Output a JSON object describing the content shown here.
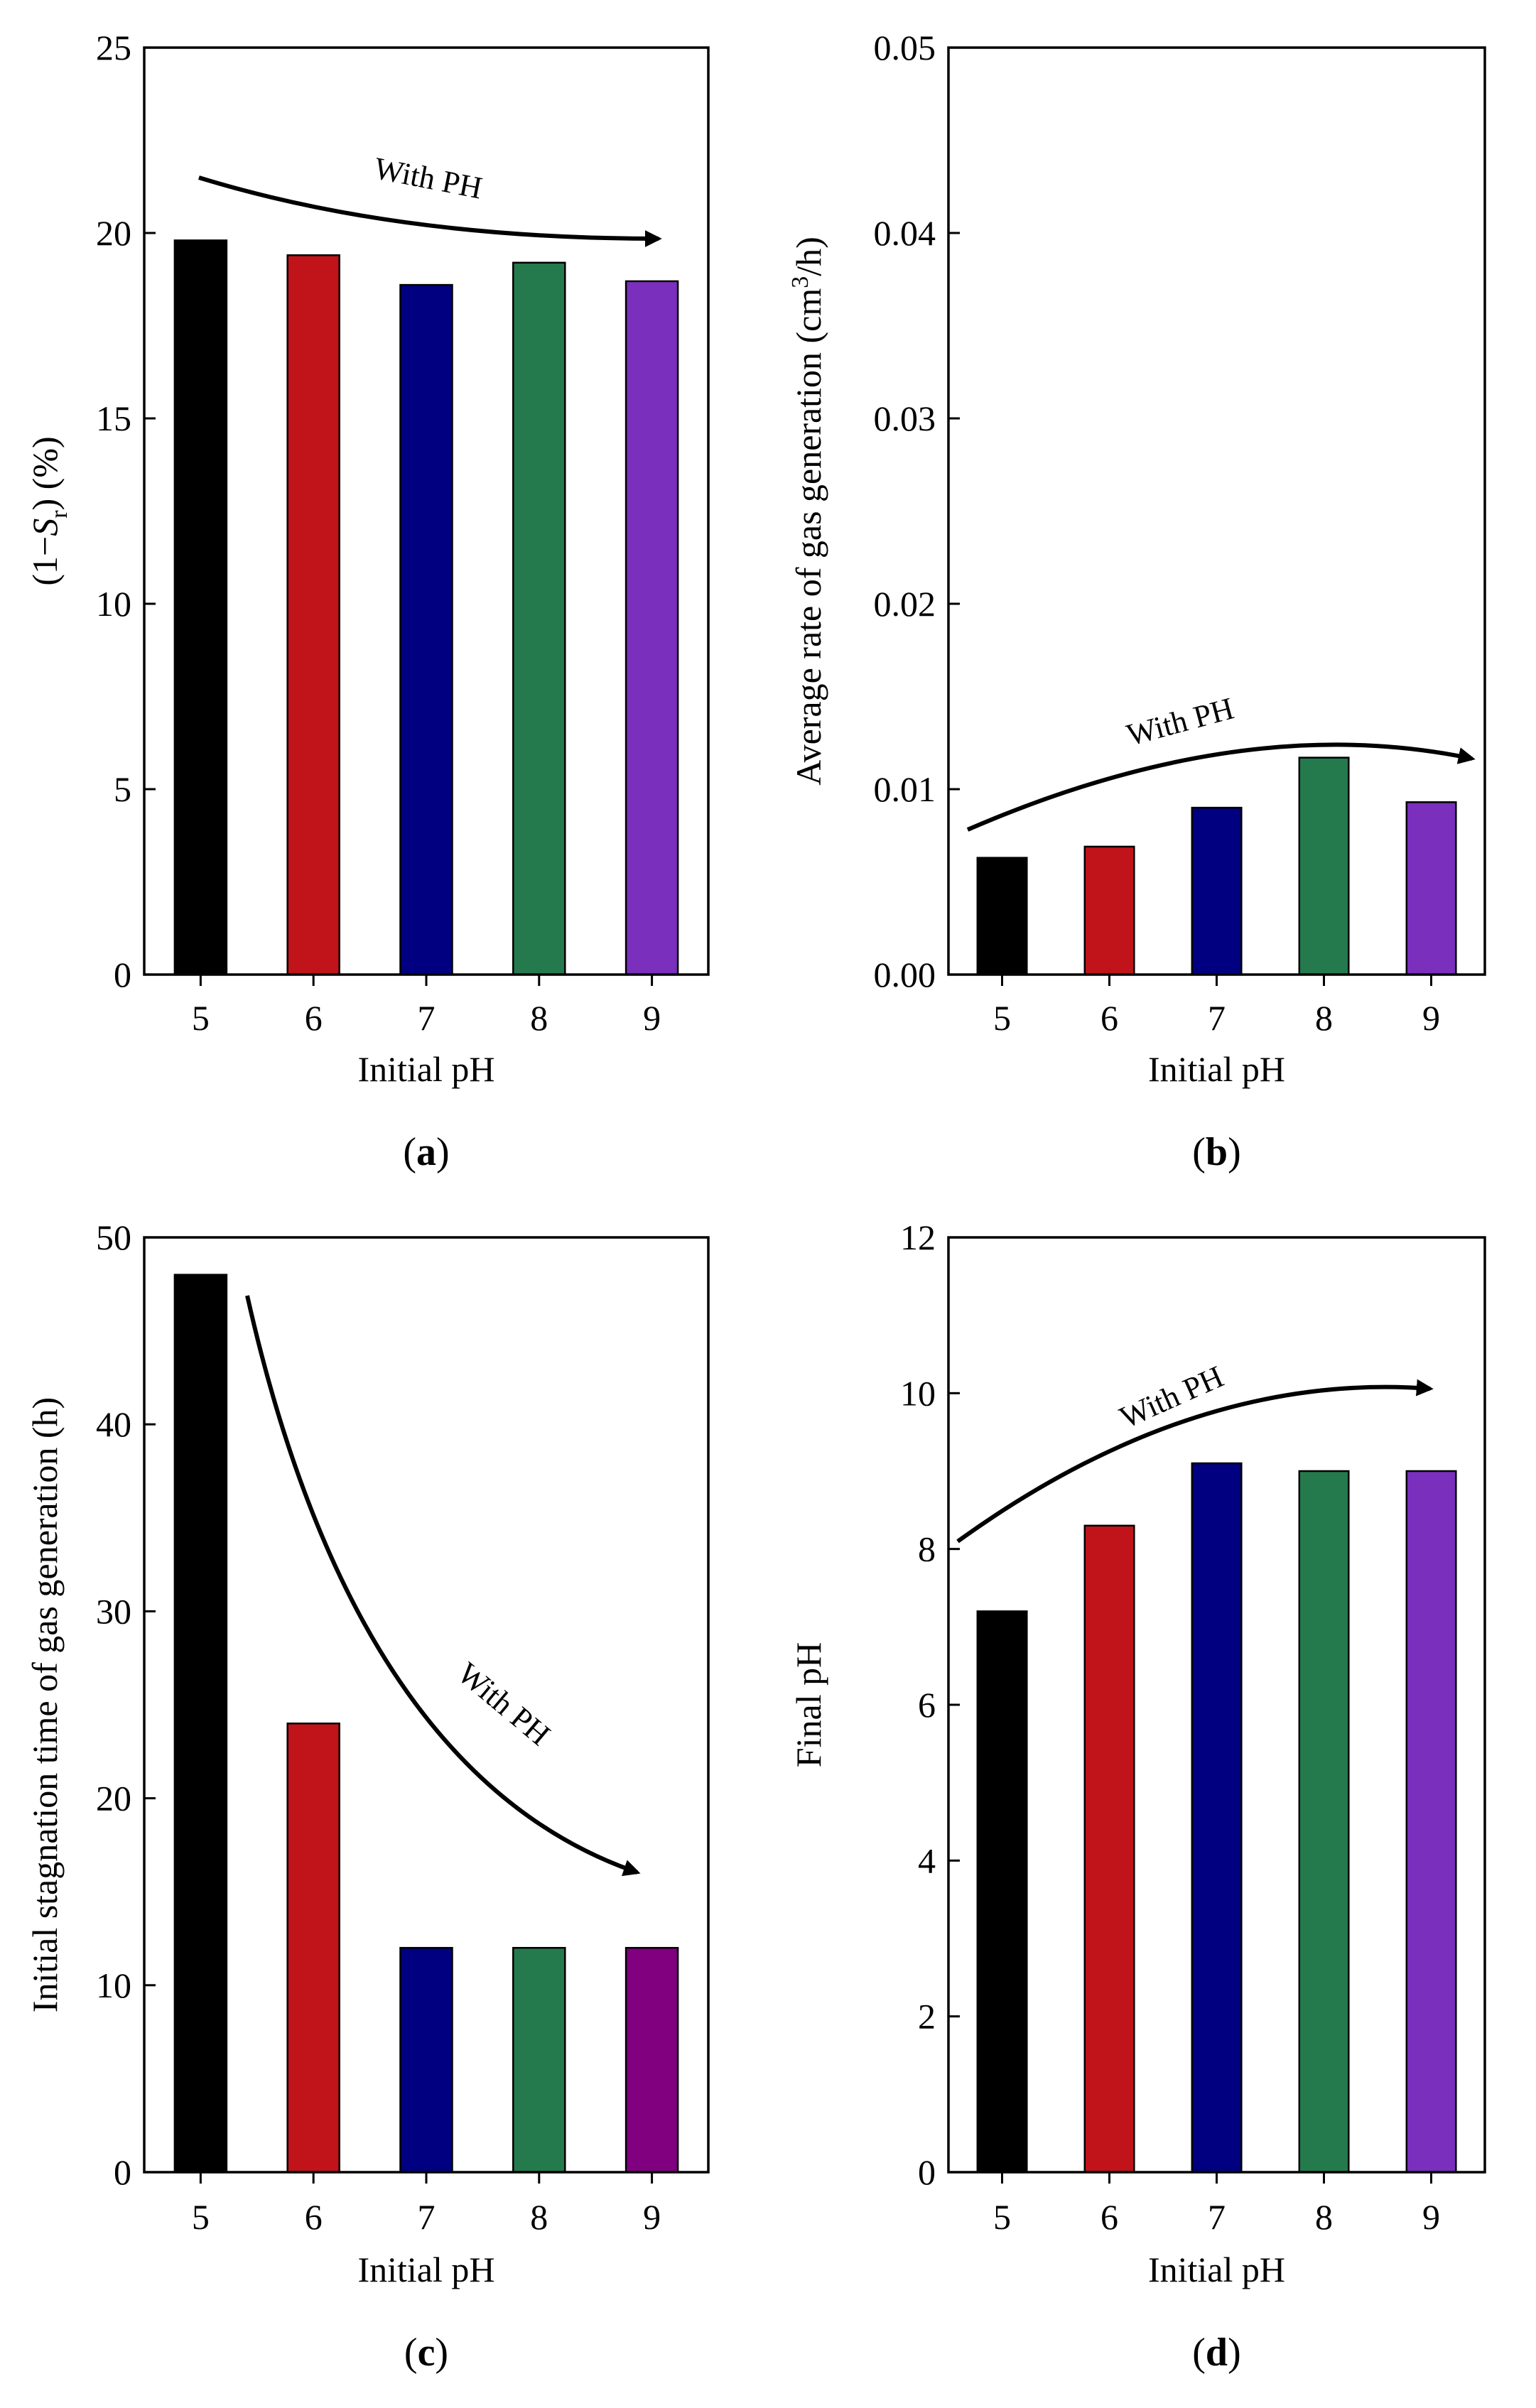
{
  "chart_data": [
    {
      "type": "bar",
      "panel": "(a)",
      "panel_letter": "a",
      "categories": [
        "5",
        "6",
        "7",
        "8",
        "9"
      ],
      "values": [
        19.8,
        19.4,
        18.6,
        19.2,
        18.7
      ],
      "colors": [
        "#000000",
        "#c0141a",
        "#000080",
        "#257a4d",
        "#7a2fbd"
      ],
      "xlabel": "Initial pH",
      "ylabel_parts": [
        "(1−",
        "S",
        "r",
        ") (%)"
      ],
      "ylim": [
        0,
        25
      ],
      "yticks": [
        "0",
        "5",
        "10",
        "15",
        "20",
        "25"
      ],
      "annotation": {
        "text": "With PH",
        "trend": "decreasing"
      }
    },
    {
      "type": "bar",
      "panel": "(b)",
      "panel_letter": "b",
      "categories": [
        "5",
        "6",
        "7",
        "8",
        "9"
      ],
      "values": [
        0.0063,
        0.0069,
        0.009,
        0.0117,
        0.0093
      ],
      "colors": [
        "#000000",
        "#c0141a",
        "#000080",
        "#257a4d",
        "#7a2fbd"
      ],
      "xlabel": "Initial pH",
      "ylabel_parts": [
        "Average rate of gas generation (cm",
        "3",
        "/h)"
      ],
      "ylim": [
        0,
        0.05
      ],
      "yticks": [
        "0.00",
        "0.01",
        "0.02",
        "0.03",
        "0.04",
        "0.05"
      ],
      "annotation": {
        "text": "With PH",
        "trend": "arched"
      }
    },
    {
      "type": "bar",
      "panel": "(c)",
      "panel_letter": "c",
      "categories": [
        "5",
        "6",
        "7",
        "8",
        "9"
      ],
      "values": [
        48,
        24,
        12,
        12,
        12
      ],
      "colors": [
        "#000000",
        "#c0141a",
        "#000080",
        "#257a4d",
        "#800080"
      ],
      "xlabel": "Initial pH",
      "ylabel": "Initial stagnation time of gas generation (h)",
      "ylim": [
        0,
        50
      ],
      "yticks": [
        "0",
        "10",
        "20",
        "30",
        "40",
        "50"
      ],
      "annotation": {
        "text": "With PH",
        "trend": "decreasing"
      }
    },
    {
      "type": "bar",
      "panel": "(d)",
      "panel_letter": "d",
      "categories": [
        "5",
        "6",
        "7",
        "8",
        "9"
      ],
      "values": [
        7.2,
        8.3,
        9.1,
        9.0,
        9.0
      ],
      "colors": [
        "#000000",
        "#c0141a",
        "#000080",
        "#257a4d",
        "#7a2fbd"
      ],
      "xlabel": "Initial pH",
      "ylabel": "Final pH",
      "ylim": [
        0,
        12
      ],
      "yticks": [
        "0",
        "2",
        "4",
        "6",
        "8",
        "10",
        "12"
      ],
      "annotation": {
        "text": "With PH",
        "trend": "increasing"
      }
    }
  ]
}
